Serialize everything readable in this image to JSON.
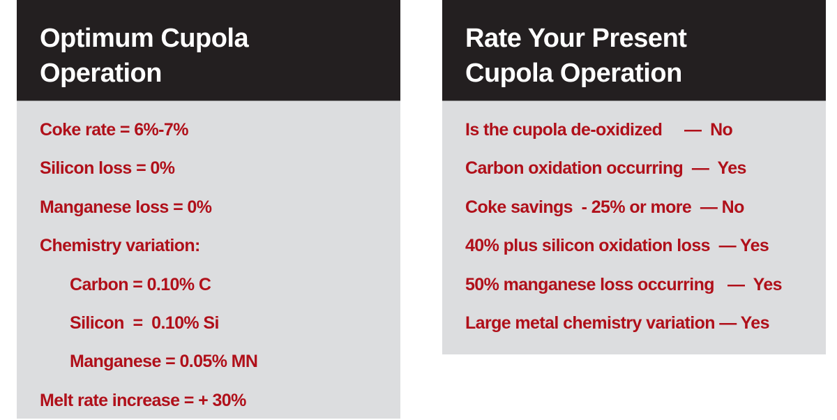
{
  "colors": {
    "header_bg": "#231f20",
    "header_text": "#ffffff",
    "panel_bg": "#dcdddf",
    "item_text": "#b0101a",
    "page_bg": "#ffffff"
  },
  "left_panel": {
    "title_lines": [
      "Optimum Cupola",
      "Operation"
    ],
    "items": [
      {
        "text": "Coke rate = 6%-7%",
        "indent": false
      },
      {
        "text": "Silicon loss = 0%",
        "indent": false
      },
      {
        "text": "Manganese loss = 0%",
        "indent": false
      },
      {
        "text": "Chemistry variation:",
        "indent": false
      },
      {
        "text": "Carbon = 0.10% C",
        "indent": true
      },
      {
        "text": "Silicon  =  0.10% Si",
        "indent": true
      },
      {
        "text": "Manganese = 0.05% MN",
        "indent": true
      },
      {
        "text": "Melt rate increase = + 30%",
        "indent": false
      }
    ]
  },
  "right_panel": {
    "title_lines": [
      "Rate Your Present",
      "Cupola Operation"
    ],
    "items": [
      {
        "text": "Is the cupola de-oxidized     —  No"
      },
      {
        "text": "Carbon oxidation occurring  —  Yes"
      },
      {
        "text": "Coke savings  - 25% or more  — No"
      },
      {
        "text": "40% plus silicon oxidation loss  — Yes"
      },
      {
        "text": "50% manganese loss occurring   —  Yes"
      },
      {
        "text": "Large metal chemistry variation — Yes"
      }
    ]
  }
}
